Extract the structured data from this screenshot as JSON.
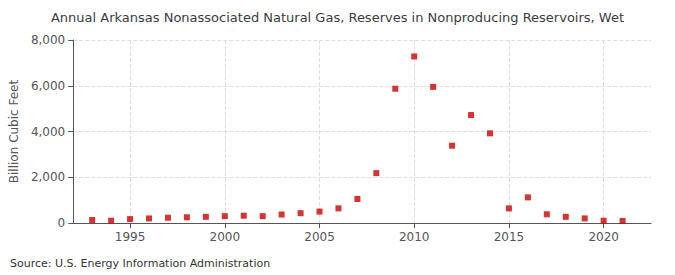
{
  "chart_data": {
    "type": "scatter",
    "title": "Annual Arkansas Nonassociated Natural Gas, Reserves in Nonproducing Reservoirs, Wet",
    "ylabel": "Billion Cubic Feet",
    "annotation": "Source: U.S. Energy Information Administration",
    "x": [
      1993,
      1994,
      1995,
      1996,
      1997,
      1998,
      1999,
      2000,
      2001,
      2002,
      2003,
      2004,
      2005,
      2006,
      2007,
      2008,
      2009,
      2010,
      2011,
      2012,
      2013,
      2014,
      2015,
      2016,
      2017,
      2018,
      2019,
      2020,
      2021
    ],
    "values": [
      130,
      100,
      170,
      200,
      230,
      250,
      270,
      300,
      320,
      300,
      370,
      430,
      500,
      640,
      1050,
      2180,
      5870,
      7280,
      5950,
      3380,
      4720,
      3920,
      640,
      1120,
      380,
      270,
      200,
      100,
      90
    ],
    "color": "#cc0000",
    "marker": "square",
    "xlim": [
      1992,
      2022.5
    ],
    "xticks": [
      1995,
      2000,
      2005,
      2010,
      2015,
      2020
    ],
    "ylim": [
      0,
      8000
    ],
    "yticks": [
      0,
      {
        "value": 2000,
        "label": "2,000"
      },
      {
        "value": 4000,
        "label": "4,000"
      },
      {
        "value": 6000,
        "label": "6,000"
      },
      {
        "value": 8000,
        "label": "8,000"
      }
    ],
    "grid": true
  }
}
